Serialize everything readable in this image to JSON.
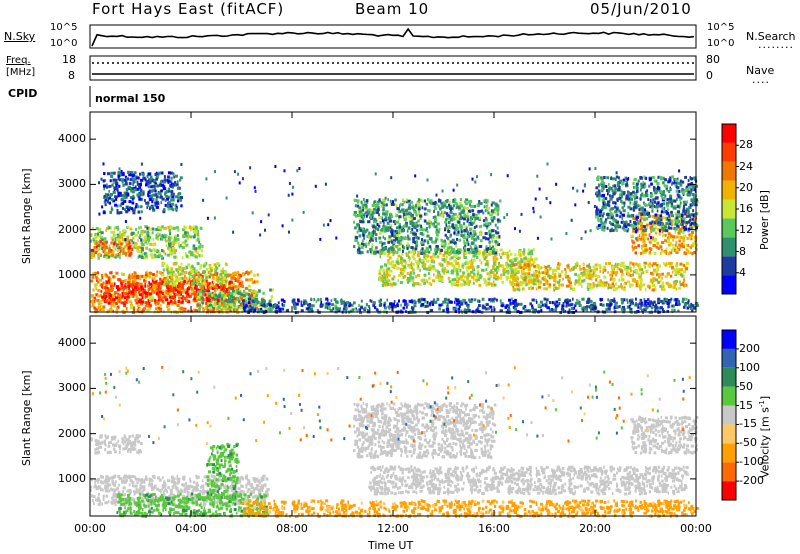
{
  "header": {
    "title": "Fort Hays East (fitACF)",
    "beam": "Beam 10",
    "date": "05/Jun/2010"
  },
  "strip": {
    "nsky_label": "N.Sky",
    "nsky_ticks": [
      "10^5",
      "10^0"
    ],
    "nsearch_label": "N.Search",
    "nsearch_ticks": [
      "10^5",
      "10^0"
    ],
    "freq_label_line1": "Freq.",
    "freq_label_line2": "[MHz]",
    "freq_ticks": [
      "18",
      "8"
    ],
    "nave_label": "Nave",
    "nave_ticks": [
      "80",
      "0"
    ],
    "cpid_label": "CPID",
    "cpid_value": "normal 150"
  },
  "colors": {
    "power": [
      "#0000ff",
      "#1e3ca0",
      "#2f8f6f",
      "#5ac85a",
      "#c8e632",
      "#f0b400",
      "#f07800",
      "#ff3c00",
      "#ff0000"
    ],
    "velocity": [
      "#ff0000",
      "#ff6a00",
      "#ffa000",
      "#ffc864",
      "#c8c8c8",
      "#5ac83c",
      "#2e8b57",
      "#3264b4",
      "#0000ff"
    ]
  },
  "chart_data": [
    {
      "type": "heatmap",
      "quantity": "Power",
      "xlabel": "",
      "ylabel": "Slant Range [km]",
      "colorbar_label": "Power [dB]",
      "colorbar_ticks": [
        4,
        8,
        12,
        16,
        20,
        24,
        28
      ],
      "clim": [
        0,
        32
      ],
      "xlim": [
        0,
        24
      ],
      "ylim": [
        180,
        4600
      ],
      "yticks": [
        1000,
        2000,
        3000,
        4000
      ],
      "bands": [
        {
          "t0": 0.0,
          "t1": 6.6,
          "r0": 200,
          "r1": 1100,
          "value": 22
        },
        {
          "t0": 0.4,
          "t1": 5.6,
          "r0": 400,
          "r1": 900,
          "value": 28
        },
        {
          "t0": 0.0,
          "t1": 4.4,
          "r0": 1400,
          "r1": 2100,
          "value": 14
        },
        {
          "t0": 0.0,
          "t1": 1.6,
          "r0": 1450,
          "r1": 1800,
          "value": 24
        },
        {
          "t0": 2.8,
          "t1": 5.4,
          "r0": 800,
          "r1": 1300,
          "value": 16
        },
        {
          "t0": 4.2,
          "t1": 7.2,
          "r0": 250,
          "r1": 700,
          "value": 12
        },
        {
          "t0": 6.0,
          "t1": 24.0,
          "r0": 200,
          "r1": 500,
          "value": 6
        },
        {
          "t0": 11.4,
          "t1": 17.6,
          "r0": 800,
          "r1": 1600,
          "value": 16
        },
        {
          "t0": 16.6,
          "t1": 23.6,
          "r0": 700,
          "r1": 1300,
          "value": 18
        },
        {
          "t0": 10.4,
          "t1": 16.2,
          "r0": 1500,
          "r1": 2700,
          "value": 10
        },
        {
          "t0": 21.4,
          "t1": 24.0,
          "r0": 1500,
          "r1": 2400,
          "value": 20
        },
        {
          "t0": 0.5,
          "t1": 3.6,
          "r0": 2400,
          "r1": 3300,
          "value": 6
        },
        {
          "t0": 20.0,
          "t1": 24.0,
          "r0": 2000,
          "r1": 3200,
          "value": 8
        }
      ]
    },
    {
      "type": "heatmap",
      "quantity": "Velocity",
      "xlabel": "Time UT",
      "ylabel": "Slant Range [km]",
      "colorbar_label": "Velocity [m s-1]",
      "colorbar_ticks": [
        -200,
        -100,
        -50,
        -15,
        15,
        50,
        100,
        200
      ],
      "xlim": [
        0,
        24
      ],
      "ylim": [
        180,
        4600
      ],
      "xticks": [
        "00:00",
        "04:00",
        "08:00",
        "12:00",
        "16:00",
        "20:00",
        "00:00"
      ],
      "yticks": [
        1000,
        2000,
        3000,
        4000
      ],
      "bands": [
        {
          "t0": 0.0,
          "t1": 7.0,
          "r0": 450,
          "r1": 1100,
          "value": 0
        },
        {
          "t0": 0.0,
          "t1": 2.0,
          "r0": 1600,
          "r1": 2000,
          "value": 0
        },
        {
          "t0": 1.0,
          "t1": 7.0,
          "r0": 200,
          "r1": 700,
          "value": 40
        },
        {
          "t0": 4.6,
          "t1": 5.8,
          "r0": 600,
          "r1": 1800,
          "value": 40
        },
        {
          "t0": 6.0,
          "t1": 24.0,
          "r0": 200,
          "r1": 550,
          "value": -60
        },
        {
          "t0": 11.0,
          "t1": 23.6,
          "r0": 700,
          "r1": 1300,
          "value": 0
        },
        {
          "t0": 10.4,
          "t1": 16.0,
          "r0": 1500,
          "r1": 2700,
          "value": 0
        },
        {
          "t0": 21.4,
          "t1": 24.0,
          "r0": 1600,
          "r1": 2400,
          "value": 0
        }
      ]
    }
  ]
}
